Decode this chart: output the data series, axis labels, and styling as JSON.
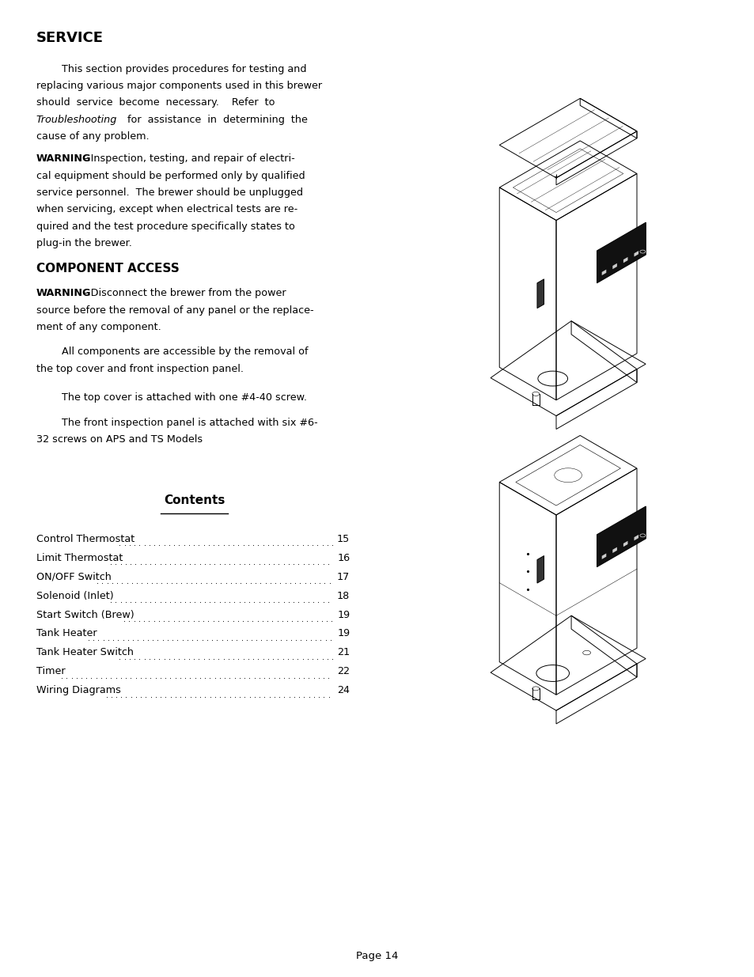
{
  "background_color": "#ffffff",
  "text_color": "#000000",
  "page_number": "Page 14",
  "section_heading": "SERVICE",
  "component_access_heading": "COMPONENT ACCESS",
  "contents_heading": "Contents",
  "contents_items": [
    [
      "Control Thermostat",
      "15"
    ],
    [
      "Limit Thermostat",
      "16"
    ],
    [
      "ON/OFF Switch ",
      "17"
    ],
    [
      "Solenoid (Inlet)",
      "18"
    ],
    [
      "Start Switch (Brew) ",
      "19"
    ],
    [
      "Tank Heater ",
      "19"
    ],
    [
      "Tank Heater Switch",
      "21"
    ],
    [
      "Timer",
      "22"
    ],
    [
      "Wiring Diagrams",
      "24"
    ]
  ]
}
